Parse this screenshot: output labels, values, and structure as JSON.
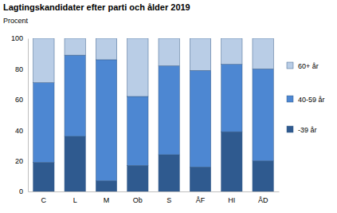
{
  "chart_data": {
    "type": "bar",
    "title": "Lagtingskandidater efter parti och ålder 2019",
    "subtitle": "Procent",
    "categories": [
      "C",
      "L",
      "M",
      "Ob",
      "S",
      "ÅF",
      "HI",
      "ÅD"
    ],
    "stacked": true,
    "grid": false,
    "legend": "right",
    "ylim": [
      0,
      100
    ],
    "yticks": [
      0,
      20,
      40,
      60,
      80,
      100
    ],
    "series": [
      {
        "name": "-39 år",
        "color": "#2f5a8f",
        "values": [
          19,
          36,
          7,
          17,
          24,
          16,
          39,
          20
        ]
      },
      {
        "name": "40-59 år",
        "color": "#4d87d2",
        "values": [
          52,
          53,
          79,
          45,
          58,
          63,
          44,
          60
        ]
      },
      {
        "name": "60+ år",
        "color": "#b9cde6",
        "values": [
          29,
          11,
          14,
          38,
          18,
          21,
          17,
          20
        ]
      }
    ]
  }
}
